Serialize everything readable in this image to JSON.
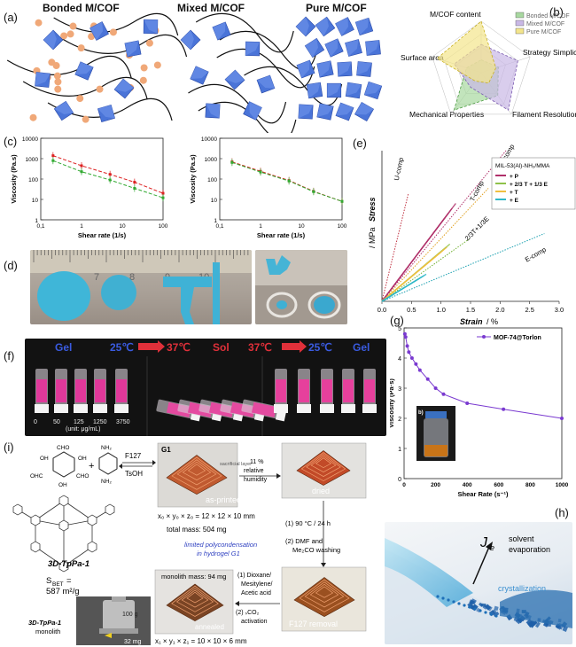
{
  "panel_labels": {
    "a": "(a)",
    "b": "(b)",
    "c": "(c)",
    "d": "(d)",
    "e": "(e)",
    "f": "(f)",
    "g": "(g)",
    "h": "(h)",
    "i": "(i)"
  },
  "panel_a": {
    "titles": [
      "Bonded M/COF",
      "Mixed M/COF",
      "Pure M/COF"
    ]
  },
  "panel_b": {
    "axes": [
      "M/COF content",
      "Strategy Simplicity",
      "Filament Resolution",
      "Mechanical Properties",
      "Surface area"
    ],
    "legend": [
      {
        "name": "Bonded M/COF",
        "color": "#a8d8a0"
      },
      {
        "name": "Mixed M/COF",
        "color": "#c9b8e6"
      },
      {
        "name": "Pure M/COF",
        "color": "#f3e58c"
      }
    ],
    "series": [
      {
        "name": "Bonded M/COF",
        "values": [
          0.25,
          0.35,
          0.55,
          0.9,
          0.3
        ]
      },
      {
        "name": "Mixed M/COF",
        "values": [
          0.55,
          0.75,
          0.9,
          0.35,
          0.55
        ]
      },
      {
        "name": "Pure M/COF",
        "values": [
          1.0,
          0.3,
          0.25,
          0.2,
          0.9
        ]
      }
    ]
  },
  "panel_c": {
    "ylabel": "Viscosity (Pa.s)",
    "xlabel": "Shear rate (1/s)",
    "yticks": [
      "10000",
      "1000",
      "100",
      "10",
      "1"
    ],
    "xticks": [
      "0,1",
      "1",
      "10",
      "100"
    ]
  },
  "panel_d": {
    "ruler_numbers": [
      "6",
      "7",
      "8",
      "9",
      "10",
      "11"
    ]
  },
  "panel_e": {
    "xlabel": "Strain",
    "xunit": " / %",
    "ylabel": "Stress",
    "yunit": " / MPa",
    "xticks": [
      "0.0",
      "0.5",
      "1.0",
      "1.5",
      "2.0",
      "2.5",
      "3.0"
    ],
    "legend_title": "MIL-53(Al)-NH₂/MMA",
    "legend": [
      {
        "name": "+ P",
        "color": "#b0306a"
      },
      {
        "name": "+ 2/3 T + 1/3 E",
        "color": "#8fc24a"
      },
      {
        "name": "+ T",
        "color": "#f0c040"
      },
      {
        "name": "+ E",
        "color": "#2fb8c8"
      }
    ],
    "curve_labels": [
      "P-comp",
      "U-comp",
      "T-comp",
      "2/3T+1/3E",
      "E-comp"
    ]
  },
  "panel_f": {
    "labels": [
      "Gel",
      "25℃",
      "37℃",
      "Sol",
      "37℃",
      "25℃",
      "Gel"
    ],
    "concentrations": [
      "0",
      "50",
      "125",
      "1250",
      "3750"
    ],
    "unit": "(unit: μg/mL)"
  },
  "panel_g": {
    "legend": "MOF-74@Torlon",
    "ylabel": "Viscosity (Pa·s)",
    "xlabel": "Shear Rate (s⁻¹)",
    "yticks": [
      "0",
      "1",
      "2",
      "3",
      "4",
      "5"
    ],
    "xticks": [
      "0",
      "200",
      "400",
      "600",
      "800",
      "1000"
    ],
    "inset_label": "b)"
  },
  "chart_data": [
    {
      "type": "line",
      "panel": "g",
      "series": [
        {
          "name": "MOF-74@Torlon",
          "x": [
            5,
            10,
            20,
            30,
            50,
            75,
            100,
            150,
            200,
            250,
            400,
            630,
            1000
          ],
          "y": [
            4.8,
            4.7,
            4.4,
            4.2,
            4.0,
            3.8,
            3.6,
            3.3,
            3.0,
            2.8,
            2.5,
            2.3,
            2.0
          ]
        }
      ],
      "xlim": [
        0,
        1000
      ],
      "ylim": [
        0,
        5
      ]
    },
    {
      "type": "line",
      "panel": "c-left",
      "xscale": "log",
      "yscale": "log",
      "series": [
        {
          "name": "",
          "color": "#d22",
          "x": [
            0.2,
            1,
            5,
            20,
            100
          ],
          "y": [
            1400,
            450,
            170,
            70,
            20
          ]
        },
        {
          "name": "",
          "color": "#3a3",
          "x": [
            0.2,
            1,
            5,
            20,
            100
          ],
          "y": [
            800,
            230,
            90,
            35,
            12
          ]
        }
      ]
    },
    {
      "type": "line",
      "panel": "c-right",
      "xscale": "log",
      "yscale": "log",
      "series": [
        {
          "name": "",
          "color": "#d22",
          "x": [
            0.2,
            1,
            5,
            20,
            100
          ],
          "y": [
            700,
            240,
            85,
            25,
            8
          ]
        },
        {
          "name": "",
          "color": "#3a3",
          "x": [
            0.2,
            1,
            5,
            20,
            100
          ],
          "y": [
            650,
            220,
            80,
            24,
            8
          ]
        }
      ]
    }
  ],
  "panel_h": {
    "je_label": "J",
    "je_sub": "e",
    "solvent": "solvent",
    "evaporation": "evaporation",
    "crystallization": "crystallization"
  },
  "panel_i": {
    "f127": "F127",
    "tsoh": "TsOH",
    "g1": "G1",
    "sacrificial": "sacrificial layer",
    "as_printed": "as-printed",
    "humidity": "11 %\nrelative\nhumidity",
    "dried": "dried",
    "dims0": "x₀ × y₀ × z₀ = 12 × 12 × 10 mm",
    "total_mass": "total mass: 504 mg",
    "framework": "3D-TpPa-1",
    "sbet_label": "S",
    "sbet_sub": "BET",
    "sbet_value": " = ",
    "sbet_area": "587 m²/g",
    "limited": "limited polycondensation",
    "limited2": "in hydrogel G1",
    "step1": "(1) 90 °C / 24 h",
    "step2": "(2) DMF and",
    "step2b": "Me₂CO washing",
    "monolith_mass": "monolith mass: 94 mg",
    "dioxane1": "(1) Dioxane/",
    "dioxane2": "Mesitylene/",
    "dioxane3": "Acetic acid",
    "sco2": "(2) ₛCO₂",
    "activation": "activation",
    "annealed": "annealed",
    "f127_removal": "F127 removal",
    "dims1": "x₁ × y₁ × z₁ = 10 × 10 × 6 mm",
    "monolith_label": "3D-TpPa-1",
    "monolith_label2": "monolith",
    "weight": "100 g",
    "mass_32": "32 mg",
    "cho1": "CHO",
    "cho2": "OHC",
    "oh": "OH",
    "nh2a": "NH₂",
    "nh2b": "NH₂"
  }
}
